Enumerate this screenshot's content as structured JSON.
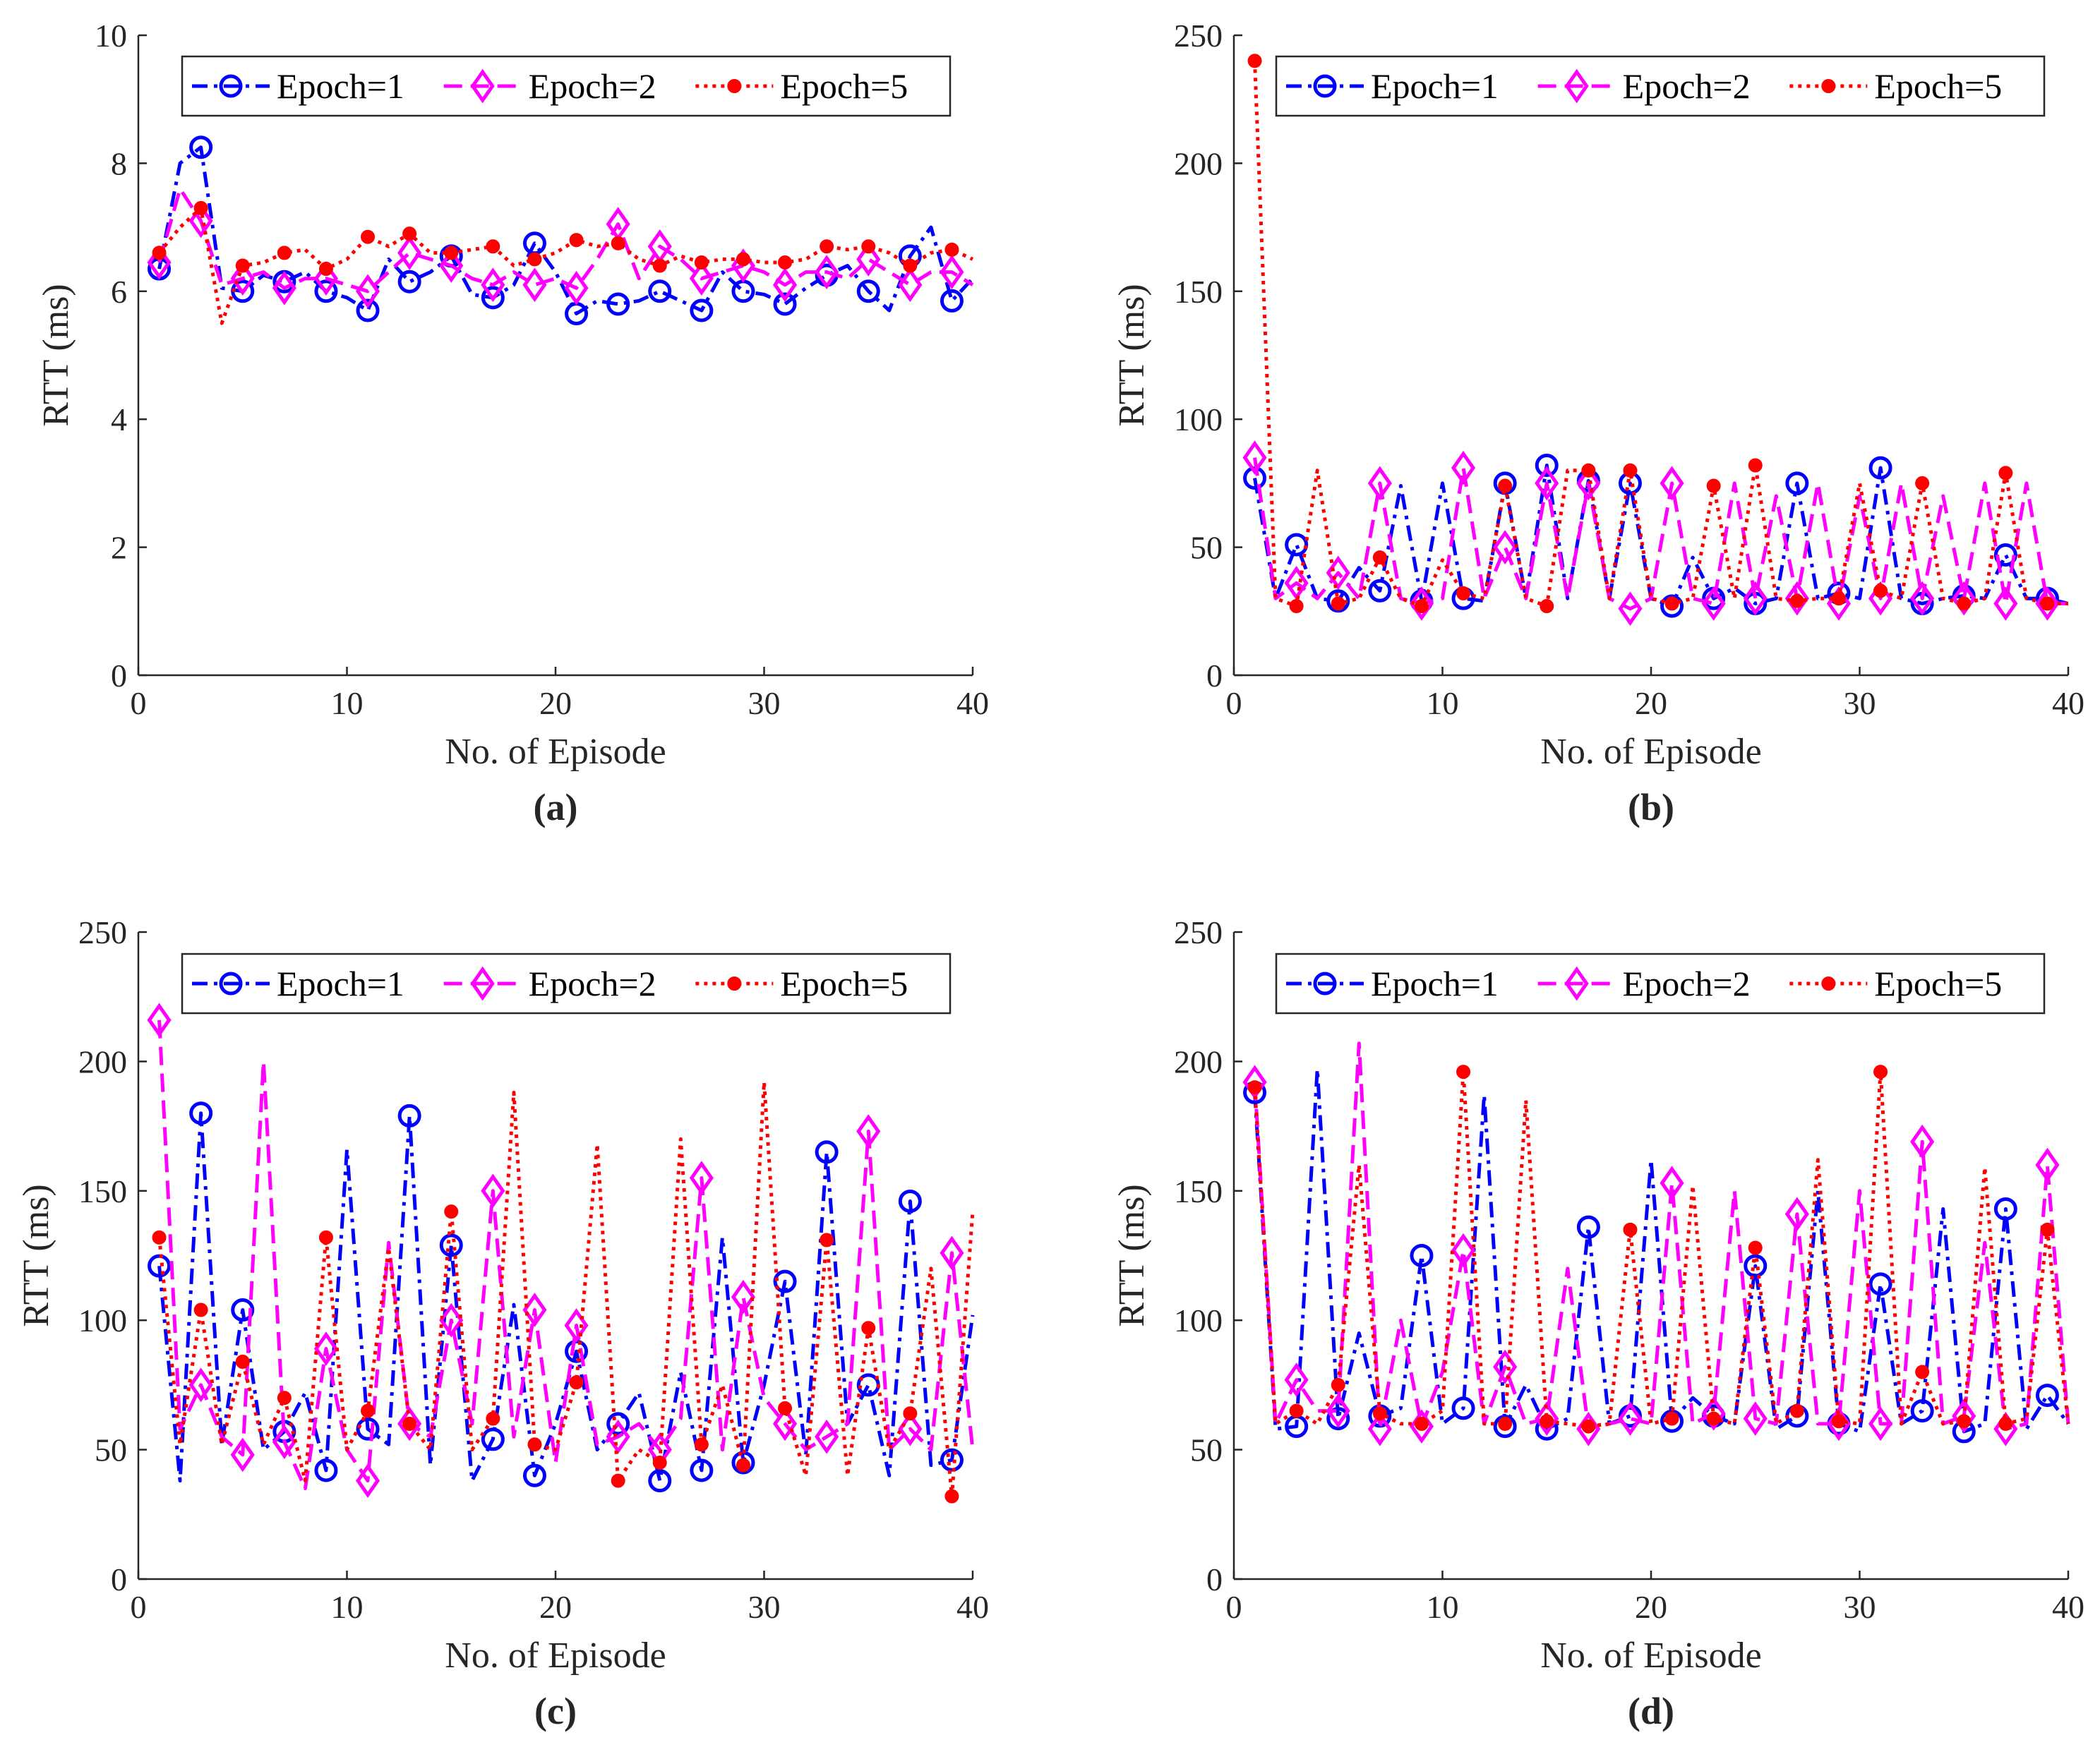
{
  "colors": {
    "epoch1": "#0000ff",
    "epoch2": "#ff00ff",
    "epoch5": "#ff0000",
    "axis": "#262626"
  },
  "chart_data": [
    {
      "type": "line",
      "panel_label": "(a)",
      "xlabel": "No. of Episode",
      "ylabel": "RTT (ms)",
      "xlim": [
        0,
        40
      ],
      "ylim": [
        0,
        10
      ],
      "xticks": [
        "0",
        "10",
        "20",
        "30",
        "40"
      ],
      "yticks": [
        "0",
        "2",
        "4",
        "6",
        "8",
        "10"
      ],
      "legend": [
        "Epoch=1",
        "Epoch=2",
        "Epoch=5"
      ],
      "legend_position": "top",
      "x": [
        1,
        2,
        3,
        4,
        5,
        6,
        7,
        8,
        9,
        10,
        11,
        12,
        13,
        14,
        15,
        16,
        17,
        18,
        19,
        20,
        21,
        22,
        23,
        24,
        25,
        26,
        27,
        28,
        29,
        30,
        31,
        32,
        33,
        34,
        35,
        36,
        37,
        38,
        39,
        40
      ],
      "series": [
        {
          "name": "Epoch=1",
          "style": "dashdot",
          "marker": "circle",
          "values": [
            6.35,
            8.0,
            8.25,
            6.05,
            6.0,
            6.25,
            6.15,
            6.3,
            6.0,
            5.9,
            5.7,
            6.5,
            6.15,
            6.3,
            6.55,
            5.95,
            5.9,
            6.1,
            6.75,
            6.3,
            5.65,
            5.85,
            5.8,
            5.85,
            6.0,
            5.85,
            5.7,
            6.3,
            6.0,
            5.95,
            5.8,
            6.05,
            6.25,
            6.4,
            6.0,
            5.7,
            6.55,
            7.0,
            5.85,
            6.2
          ]
        },
        {
          "name": "Epoch=2",
          "style": "dashed",
          "marker": "diamond",
          "values": [
            6.45,
            7.6,
            7.1,
            6.1,
            6.2,
            6.3,
            6.05,
            6.2,
            6.2,
            6.1,
            6.0,
            6.3,
            6.6,
            6.5,
            6.4,
            6.2,
            6.1,
            6.3,
            6.1,
            6.2,
            6.05,
            6.5,
            7.05,
            6.2,
            6.7,
            6.5,
            6.2,
            6.3,
            6.4,
            6.3,
            6.1,
            6.3,
            6.3,
            6.2,
            6.5,
            6.3,
            6.1,
            6.3,
            6.3,
            6.1
          ]
        },
        {
          "name": "Epoch=5",
          "style": "dotted",
          "marker": "dot",
          "values": [
            6.6,
            7.0,
            7.3,
            5.5,
            6.4,
            6.45,
            6.6,
            6.65,
            6.35,
            6.5,
            6.85,
            6.7,
            6.9,
            6.6,
            6.6,
            6.65,
            6.7,
            6.4,
            6.5,
            6.6,
            6.8,
            6.7,
            6.75,
            6.5,
            6.4,
            6.55,
            6.45,
            6.5,
            6.5,
            6.45,
            6.45,
            6.5,
            6.7,
            6.65,
            6.7,
            6.6,
            6.4,
            6.6,
            6.65,
            6.5
          ]
        }
      ]
    },
    {
      "type": "line",
      "panel_label": "(b)",
      "xlabel": "No. of Episode",
      "ylabel": "RTT (ms)",
      "xlim": [
        0,
        40
      ],
      "ylim": [
        0,
        250
      ],
      "xticks": [
        "0",
        "10",
        "20",
        "30",
        "40"
      ],
      "yticks": [
        "0",
        "50",
        "100",
        "150",
        "200",
        "250"
      ],
      "legend": [
        "Epoch=1",
        "Epoch=2",
        "Epoch=5"
      ],
      "legend_position": "top",
      "x": [
        1,
        2,
        3,
        4,
        5,
        6,
        7,
        8,
        9,
        10,
        11,
        12,
        13,
        14,
        15,
        16,
        17,
        18,
        19,
        20,
        21,
        22,
        23,
        24,
        25,
        26,
        27,
        28,
        29,
        30,
        31,
        32,
        33,
        34,
        35,
        36,
        37,
        38,
        39,
        40
      ],
      "series": [
        {
          "name": "Epoch=1",
          "style": "dashdot",
          "marker": "circle",
          "values": [
            77,
            30,
            51,
            30,
            29,
            42,
            33,
            74,
            29,
            75,
            30,
            29,
            75,
            30,
            82,
            30,
            76,
            30,
            75,
            30,
            27,
            46,
            30,
            34,
            28,
            30,
            75,
            30,
            32,
            30,
            81,
            30,
            28,
            30,
            31,
            30,
            47,
            30,
            30,
            28
          ]
        },
        {
          "name": "Epoch=2",
          "style": "dashed",
          "marker": "diamond",
          "values": [
            85,
            30,
            36,
            30,
            40,
            30,
            75,
            30,
            28,
            30,
            81,
            30,
            50,
            30,
            75,
            30,
            75,
            30,
            26,
            30,
            75,
            30,
            28,
            75,
            30,
            70,
            30,
            75,
            28,
            70,
            30,
            75,
            30,
            70,
            30,
            75,
            28,
            75,
            28,
            28
          ]
        },
        {
          "name": "Epoch=5",
          "style": "dotted",
          "marker": "dot",
          "values": [
            240,
            30,
            27,
            80,
            28,
            30,
            46,
            30,
            27,
            45,
            32,
            30,
            74,
            30,
            27,
            80,
            80,
            30,
            80,
            30,
            28,
            30,
            74,
            30,
            82,
            30,
            29,
            30,
            30,
            75,
            33,
            30,
            75,
            30,
            28,
            30,
            79,
            30,
            28,
            28
          ]
        }
      ]
    },
    {
      "type": "line",
      "panel_label": "(c)",
      "xlabel": "No. of Episode",
      "ylabel": "RTT (ms)",
      "xlim": [
        0,
        40
      ],
      "ylim": [
        0,
        250
      ],
      "xticks": [
        "0",
        "10",
        "20",
        "30",
        "40"
      ],
      "yticks": [
        "0",
        "50",
        "100",
        "150",
        "200",
        "250"
      ],
      "legend": [
        "Epoch=1",
        "Epoch=2",
        "Epoch=5"
      ],
      "legend_position": "top",
      "x": [
        1,
        2,
        3,
        4,
        5,
        6,
        7,
        8,
        9,
        10,
        11,
        12,
        13,
        14,
        15,
        16,
        17,
        18,
        19,
        20,
        21,
        22,
        23,
        24,
        25,
        26,
        27,
        28,
        29,
        30,
        31,
        32,
        33,
        34,
        35,
        36,
        37,
        38,
        39,
        40
      ],
      "series": [
        {
          "name": "Epoch=1",
          "style": "dashdot",
          "marker": "circle",
          "values": [
            121,
            38,
            180,
            52,
            104,
            50,
            57,
            72,
            42,
            166,
            58,
            52,
            179,
            44,
            129,
            38,
            54,
            106,
            40,
            60,
            88,
            50,
            60,
            72,
            38,
            80,
            42,
            132,
            45,
            75,
            115,
            48,
            165,
            60,
            75,
            40,
            146,
            44,
            46,
            102
          ]
        },
        {
          "name": "Epoch=2",
          "style": "dashed",
          "marker": "diamond",
          "values": [
            216,
            58,
            75,
            55,
            48,
            200,
            53,
            35,
            89,
            50,
            38,
            130,
            60,
            55,
            100,
            60,
            150,
            55,
            104,
            45,
            98,
            52,
            55,
            60,
            50,
            62,
            155,
            50,
            109,
            70,
            60,
            50,
            55,
            60,
            173,
            50,
            58,
            50,
            126,
            50
          ]
        },
        {
          "name": "Epoch=5",
          "style": "dotted",
          "marker": "dot",
          "values": [
            132,
            52,
            104,
            52,
            84,
            52,
            70,
            38,
            132,
            50,
            65,
            128,
            60,
            50,
            142,
            50,
            62,
            188,
            52,
            50,
            76,
            168,
            38,
            50,
            45,
            170,
            52,
            75,
            44,
            192,
            66,
            40,
            131,
            40,
            97,
            50,
            64,
            120,
            32,
            142
          ]
        }
      ]
    },
    {
      "type": "line",
      "panel_label": "(d)",
      "xlabel": "No. of Episode",
      "ylabel": "RTT (ms)",
      "xlim": [
        0,
        40
      ],
      "ylim": [
        0,
        250
      ],
      "xticks": [
        "0",
        "10",
        "20",
        "30",
        "40"
      ],
      "yticks": [
        "0",
        "50",
        "100",
        "150",
        "200",
        "250"
      ],
      "legend": [
        "Epoch=1",
        "Epoch=2",
        "Epoch=5"
      ],
      "legend_position": "top",
      "x": [
        1,
        2,
        3,
        4,
        5,
        6,
        7,
        8,
        9,
        10,
        11,
        12,
        13,
        14,
        15,
        16,
        17,
        18,
        19,
        20,
        21,
        22,
        23,
        24,
        25,
        26,
        27,
        28,
        29,
        30,
        31,
        32,
        33,
        34,
        35,
        36,
        37,
        38,
        39,
        40
      ],
      "series": [
        {
          "name": "Epoch=1",
          "style": "dashdot",
          "marker": "circle",
          "values": [
            188,
            58,
            59,
            197,
            62,
            95,
            63,
            66,
            125,
            60,
            66,
            187,
            59,
            75,
            58,
            62,
            136,
            60,
            63,
            162,
            61,
            70,
            63,
            60,
            121,
            58,
            63,
            150,
            60,
            57,
            114,
            60,
            65,
            143,
            57,
            60,
            143,
            58,
            71,
            60
          ]
        },
        {
          "name": "Epoch=2",
          "style": "dashed",
          "marker": "diamond",
          "values": [
            192,
            60,
            77,
            65,
            65,
            207,
            58,
            100,
            59,
            80,
            127,
            60,
            82,
            60,
            62,
            120,
            58,
            60,
            62,
            60,
            153,
            60,
            64,
            150,
            62,
            60,
            141,
            60,
            60,
            150,
            60,
            60,
            169,
            60,
            63,
            130,
            58,
            60,
            160,
            60
          ]
        },
        {
          "name": "Epoch=5",
          "style": "dotted",
          "marker": "dot",
          "values": [
            190,
            60,
            65,
            60,
            75,
            160,
            64,
            60,
            60,
            65,
            196,
            60,
            60,
            185,
            61,
            60,
            59,
            60,
            135,
            60,
            62,
            152,
            62,
            60,
            128,
            60,
            65,
            162,
            61,
            60,
            196,
            60,
            80,
            60,
            61,
            159,
            60,
            62,
            135,
            60
          ]
        }
      ]
    }
  ]
}
